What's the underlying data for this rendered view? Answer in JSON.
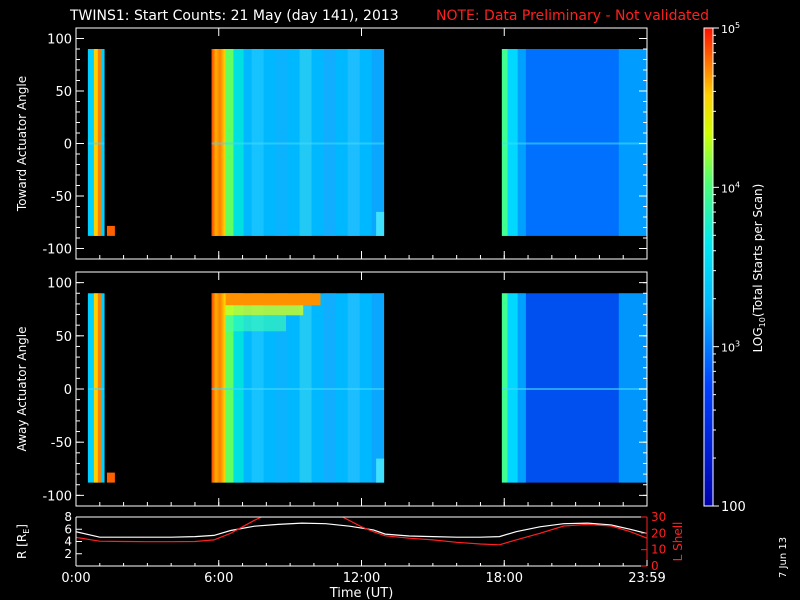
{
  "title": "TWINS1: Start Counts: 21 May (day 141), 2013",
  "note": "NOTE: Data Preliminary - Not validated",
  "date_stamp": "7 Jun 13",
  "chart_data": [
    {
      "type": "heatmap",
      "ylabel": "Toward Actuator Angle",
      "x_ticks": [
        "0:00",
        "6:00",
        "12:00",
        "18:00",
        "23:59"
      ],
      "y_ticks": [
        100,
        50,
        0,
        -50,
        -100
      ],
      "ylim": [
        -110,
        110
      ],
      "xlim_hours": [
        0,
        24
      ],
      "data_intervals_hours": [
        [
          0.5,
          1.2
        ],
        [
          5.7,
          12.95
        ],
        [
          17.9,
          23.99
        ]
      ],
      "y_range_deg": [
        -88,
        90
      ]
    },
    {
      "type": "heatmap",
      "ylabel": "Away Actuator Angle",
      "x_ticks": [
        "0:00",
        "6:00",
        "12:00",
        "18:00",
        "23:59"
      ],
      "y_ticks": [
        100,
        50,
        0,
        -50,
        -100
      ],
      "ylim": [
        -110,
        110
      ],
      "xlim_hours": [
        0,
        24
      ],
      "data_intervals_hours": [
        [
          0.5,
          1.2
        ],
        [
          5.7,
          12.95
        ],
        [
          17.9,
          23.99
        ]
      ],
      "y_range_deg": [
        -88,
        90
      ]
    },
    {
      "type": "line",
      "ylabel_left": "R [R",
      "ylabel_left_sub": "E",
      "ylabel_left_end": "]",
      "ylabel_right": "L Shell",
      "xlabel": "Time (UT)",
      "x_ticks": [
        "0:00",
        "6:00",
        "12:00",
        "18:00",
        "23:59"
      ],
      "y_ticks_left": [
        8,
        6,
        4,
        2
      ],
      "y_ticks_right": [
        30,
        20,
        10,
        0
      ],
      "ylim_left": [
        0,
        8
      ],
      "ylim_right": [
        0,
        30
      ],
      "series": [
        {
          "axis": "left",
          "color": "#ffffff",
          "x": [
            0,
            1,
            2,
            3,
            4,
            5,
            5.8,
            6.5,
            7.5,
            8.5,
            9.5,
            10.5,
            11.5,
            12.5,
            13,
            14,
            15,
            16,
            17,
            17.8,
            18.5,
            19.5,
            20.5,
            21.5,
            22.5,
            23.3,
            24
          ],
          "y": [
            5.6,
            4.7,
            4.7,
            4.7,
            4.7,
            4.8,
            5.0,
            5.8,
            6.5,
            6.8,
            7.0,
            6.9,
            6.5,
            5.9,
            5.2,
            4.9,
            4.8,
            4.7,
            4.7,
            4.8,
            5.6,
            6.4,
            6.9,
            7.0,
            6.7,
            6.0,
            5.3
          ]
        },
        {
          "axis": "right",
          "color": "#ff2020",
          "x": [
            0,
            1,
            2,
            3,
            4,
            5,
            5.8,
            6.5,
            7,
            7.5,
            7.8,
            11.2,
            11.6,
            12,
            12.5,
            13,
            14,
            15,
            16,
            17,
            17.8,
            18.5,
            19.5,
            20.5,
            21.5,
            22.5,
            23.3,
            24
          ],
          "y": [
            17.5,
            15.2,
            15,
            14.9,
            14.9,
            15,
            16,
            20,
            24,
            28,
            30,
            30,
            27,
            24,
            21,
            18.5,
            17,
            16,
            14.5,
            13.5,
            13,
            16,
            20,
            24.5,
            25.5,
            24.5,
            21,
            17
          ]
        }
      ]
    }
  ],
  "colorbar": {
    "label_pre": "LOG",
    "label_sub": "10",
    "label_post": "(Total Starts per Scan)",
    "ticks": [
      {
        "value": 100000,
        "base": "10",
        "exp": "5"
      },
      {
        "value": 10000,
        "base": "10",
        "exp": "4"
      },
      {
        "value": 1000,
        "base": "10",
        "exp": "3"
      },
      {
        "value": 100,
        "label": "100"
      }
    ],
    "range": [
      100,
      100000
    ],
    "colors": [
      "#0000aa",
      "#0030ff",
      "#00a0ff",
      "#00e0ff",
      "#40ff80",
      "#c0ff00",
      "#ffe000",
      "#ff8000",
      "#ff2000"
    ]
  }
}
